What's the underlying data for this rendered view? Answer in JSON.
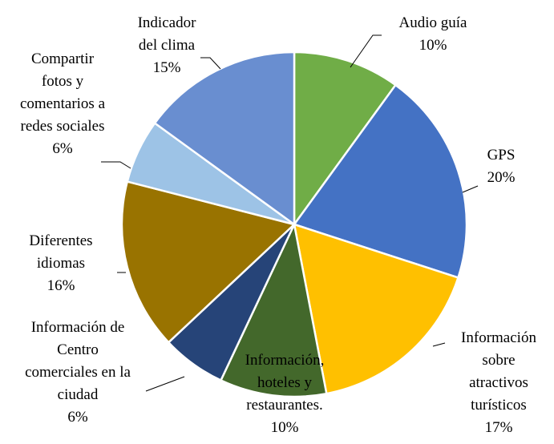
{
  "chart_data": {
    "type": "pie",
    "categories": [
      "Audio guía",
      "GPS",
      "Información sobre atractivos turísticos",
      "Información, hoteles y restaurantes.",
      "Información de Centro comerciales en la ciudad",
      "Diferentes idiomas",
      "Compartir fotos y comentarios a redes sociales",
      "Indicador del clima"
    ],
    "values": [
      10,
      20,
      17,
      10,
      6,
      16,
      6,
      15
    ],
    "value_labels": [
      "10%",
      "20%",
      "17%",
      "10%",
      "6%",
      "16%",
      "6%",
      "15%"
    ],
    "colors": [
      "#70ad47",
      "#4472c4",
      "#ffc000",
      "#43682b",
      "#264478",
      "#997300",
      "#9dc3e6",
      "#698ed0"
    ]
  }
}
